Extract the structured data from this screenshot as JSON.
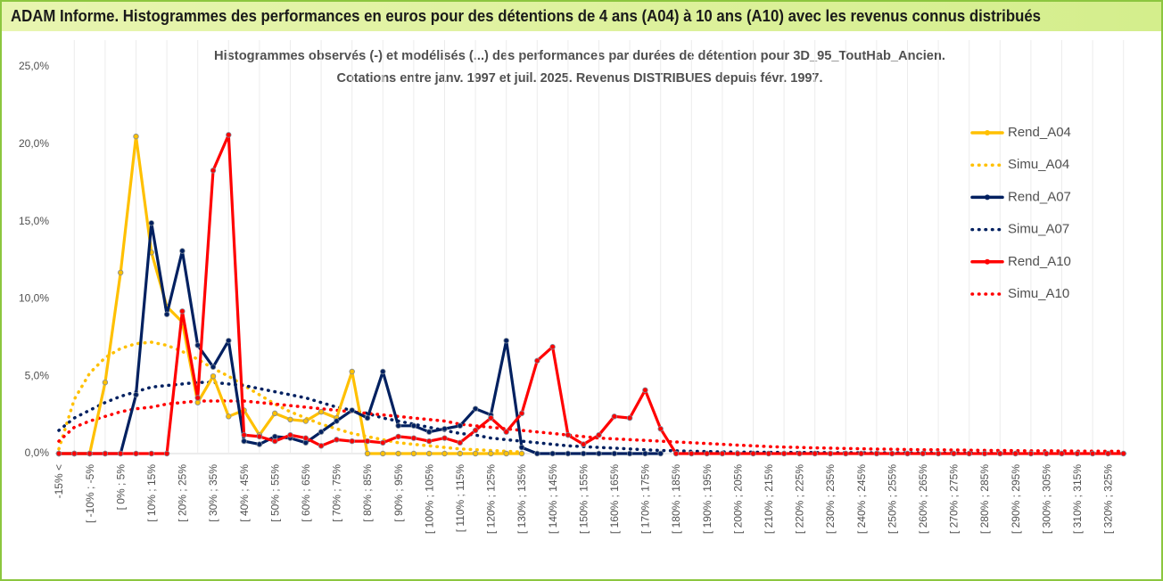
{
  "header": {
    "title": "ADAM Informe. Histogrammes des performances en euros pour des détentions de 4 ans (A04) à 10 ans (A10) avec les revenus connus distribués"
  },
  "chart_data": {
    "type": "line",
    "title": "Histogrammes observés (-) et modélisés (...) des performances par durées de détention pour 3D_95_ToutHab_Ancien.",
    "subtitle": "Cotations entre janv. 1997 et juil. 2025. Revenus DISTRIBUES depuis févr. 1997.",
    "categories": [
      "-15% <",
      null,
      "[ -10% ; -5%",
      null,
      "[ 0% ; 5%",
      null,
      "[ 10% ; 15%",
      null,
      "[ 20% ; 25%",
      null,
      "[ 30% ; 35%",
      null,
      "[ 40% ; 45%",
      null,
      "[ 50% ; 55%",
      null,
      "[ 60% ; 65%",
      null,
      "[ 70% ; 75%",
      null,
      "[ 80% ; 85%",
      null,
      "[ 90% ; 95%",
      null,
      "[ 100% ; 105%",
      null,
      "[ 110% ; 115%",
      null,
      "[ 120% ; 125%",
      null,
      "[ 130% ; 135%",
      null,
      "[ 140% ; 145%",
      null,
      "[ 150% ; 155%",
      null,
      "[ 160% ; 165%",
      null,
      "[ 170% ; 175%",
      null,
      "[ 180% ; 185%",
      null,
      "[ 190% ; 195%",
      null,
      "[ 200% ; 205%",
      null,
      "[ 210% ; 215%",
      null,
      "[ 220% ; 225%",
      null,
      "[ 230% ; 235%",
      null,
      "[ 240% ; 245%",
      null,
      "[ 250% ; 255%",
      null,
      "[ 260% ; 265%",
      null,
      "[ 270% ; 275%",
      null,
      "[ 280% ; 285%",
      null,
      "[ 290% ; 295%",
      null,
      "[ 300% ; 305%",
      null,
      "[ 310% ; 315%",
      null,
      "[ 320% ; 325%",
      null
    ],
    "ylim": [
      0,
      25
    ],
    "yticks": [
      {
        "value": 0,
        "label": "0,0%"
      },
      {
        "value": 5,
        "label": "5,0%"
      },
      {
        "value": 10,
        "label": "10,0%"
      },
      {
        "value": 15,
        "label": "15,0%"
      },
      {
        "value": 20,
        "label": "20,0%"
      },
      {
        "value": 25,
        "label": "25,0%"
      }
    ],
    "grid": "x",
    "legend": "right",
    "series": [
      {
        "name": "Rend_A04",
        "color": "#ffc000",
        "line_style": "solid",
        "markers": true,
        "values": [
          0,
          0,
          0,
          4.6,
          11.7,
          20.5,
          13.0,
          9.5,
          8.5,
          3.3,
          5.0,
          2.4,
          2.8,
          1.2,
          2.6,
          2.2,
          2.1,
          2.7,
          2.3,
          5.3,
          0,
          0,
          0,
          0,
          0,
          0,
          0,
          0,
          0,
          0,
          0,
          null,
          null,
          null,
          null,
          null,
          null,
          null,
          null,
          null,
          null,
          null,
          null,
          null,
          null,
          null,
          null,
          null,
          null,
          null,
          null,
          null,
          null,
          null,
          null,
          null,
          null,
          null,
          null,
          null,
          null,
          null,
          null,
          null,
          null,
          null,
          null,
          null,
          null,
          null
        ]
      },
      {
        "name": "Simu_A04",
        "color": "#ffc000",
        "line_style": "dotted",
        "markers": false,
        "values": [
          0.3,
          3.5,
          5.2,
          6.2,
          6.8,
          7.1,
          7.2,
          7.0,
          6.6,
          6.1,
          5.5,
          5.0,
          4.4,
          3.8,
          3.2,
          2.7,
          2.3,
          1.9,
          1.6,
          1.3,
          1.1,
          0.9,
          0.7,
          0.6,
          0.5,
          0.4,
          0.3,
          0.25,
          0.2,
          0.15,
          0.1,
          null,
          null,
          null,
          null,
          null,
          null,
          null,
          null,
          null,
          null,
          null,
          null,
          null,
          null,
          null,
          null,
          null,
          null,
          null,
          null,
          null,
          null,
          null,
          null,
          null,
          null,
          null,
          null,
          null,
          null,
          null,
          null,
          null,
          null,
          null,
          null,
          null,
          null,
          null
        ]
      },
      {
        "name": "Rend_A07",
        "color": "#002060",
        "line_style": "solid",
        "markers": true,
        "values": [
          0,
          0,
          0,
          0,
          0,
          3.8,
          14.9,
          9.0,
          13.1,
          7.0,
          5.6,
          7.3,
          0.8,
          0.6,
          1.1,
          1.0,
          0.7,
          1.4,
          2.1,
          2.8,
          2.3,
          5.3,
          1.8,
          1.8,
          1.4,
          1.6,
          1.8,
          2.9,
          2.5,
          7.3,
          0.4,
          0,
          0,
          0,
          0,
          0,
          0,
          0,
          0,
          0,
          null,
          null,
          null,
          null,
          null,
          null,
          null,
          null,
          null,
          null,
          null,
          null,
          null,
          null,
          null,
          null,
          null,
          null,
          null,
          null,
          null,
          null,
          null,
          null,
          null,
          null,
          null,
          null,
          null,
          null
        ]
      },
      {
        "name": "Simu_A07",
        "color": "#002060",
        "line_style": "dotted",
        "markers": false,
        "values": [
          1.5,
          2.3,
          2.8,
          3.3,
          3.7,
          4.0,
          4.3,
          4.4,
          4.5,
          4.6,
          4.6,
          4.5,
          4.4,
          4.2,
          4.0,
          3.8,
          3.6,
          3.3,
          3.0,
          2.8,
          2.6,
          2.3,
          2.1,
          1.9,
          1.7,
          1.5,
          1.3,
          1.2,
          1.0,
          0.9,
          0.8,
          0.7,
          0.6,
          0.5,
          0.45,
          0.4,
          0.35,
          0.3,
          0.25,
          0.2,
          0.18,
          0.15,
          0.13,
          0.11,
          0.1,
          0.09,
          0.08,
          0.08,
          0.07,
          0.07,
          0.06,
          0.06,
          0.05,
          0.05,
          0.05,
          0.04,
          0.04,
          0.04,
          0.03,
          0.03,
          0.03,
          0.03,
          0.02,
          0.02,
          0.02,
          0.02,
          0.02,
          0.01,
          0.01,
          0.01
        ]
      },
      {
        "name": "Rend_A10",
        "color": "#ff0000",
        "line_style": "solid",
        "markers": true,
        "values": [
          0,
          0,
          0,
          0,
          0,
          0,
          0,
          0,
          9.2,
          3.6,
          18.3,
          20.6,
          1.2,
          1.1,
          0.8,
          1.2,
          1.0,
          0.5,
          0.9,
          0.8,
          0.8,
          0.7,
          1.1,
          1.0,
          0.8,
          1.0,
          0.7,
          1.5,
          2.3,
          1.4,
          2.6,
          6.0,
          6.9,
          1.2,
          0.6,
          1.2,
          2.4,
          2.3,
          4.1,
          1.6,
          0,
          0,
          0,
          0,
          0,
          0,
          0,
          0,
          0,
          0,
          0,
          0,
          0,
          0,
          0,
          0,
          0,
          0,
          0,
          0,
          0,
          0,
          0,
          0,
          0,
          0,
          0,
          0,
          0,
          0
        ]
      },
      {
        "name": "Simu_A10",
        "color": "#ff0000",
        "line_style": "dotted",
        "markers": false,
        "values": [
          0.8,
          1.7,
          2.1,
          2.4,
          2.7,
          2.9,
          3.0,
          3.2,
          3.3,
          3.4,
          3.4,
          3.4,
          3.4,
          3.3,
          3.2,
          3.1,
          3.0,
          2.9,
          2.8,
          2.7,
          2.6,
          2.5,
          2.4,
          2.3,
          2.2,
          2.1,
          1.9,
          1.8,
          1.7,
          1.6,
          1.5,
          1.4,
          1.3,
          1.2,
          1.1,
          1.0,
          0.95,
          0.9,
          0.85,
          0.8,
          0.75,
          0.7,
          0.65,
          0.6,
          0.55,
          0.5,
          0.45,
          0.42,
          0.4,
          0.37,
          0.35,
          0.33,
          0.31,
          0.29,
          0.28,
          0.26,
          0.25,
          0.24,
          0.23,
          0.22,
          0.21,
          0.2,
          0.19,
          0.18,
          0.18,
          0.17,
          0.16,
          0.16,
          0.15,
          0.15
        ]
      }
    ]
  }
}
